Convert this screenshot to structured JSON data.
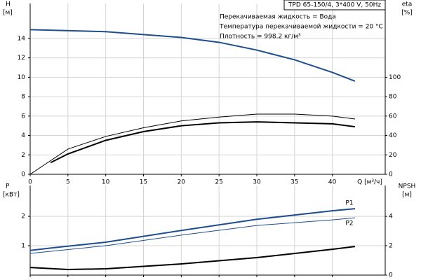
{
  "chart_data": [
    {
      "type": "line",
      "title": "TPD 65-150/4, 3*400 V, 50Hz",
      "annotations": [
        "Перекачиваемая жидкость = Вода",
        "Температура перекачиваемой жидкости = 20 °C",
        "Плотность = 998.2 кг/м³"
      ],
      "ylabel": "H",
      "yunit": "[м]",
      "y2label": "eta",
      "y2unit": "[%]",
      "xlabel": "Q [м³/ч]",
      "xlim": [
        0,
        47
      ],
      "xticks": [
        0,
        5,
        10,
        15,
        20,
        25,
        30,
        35,
        40
      ],
      "show_xtick_labels": true,
      "ylim": [
        0,
        17.6
      ],
      "yticks": [
        0,
        2,
        4,
        6,
        8,
        10,
        12,
        14
      ],
      "y2lim": [
        0,
        176
      ],
      "y2ticks": [
        0,
        20,
        40,
        60,
        80,
        100
      ],
      "grid": true,
      "series": [
        {
          "color": "#1f4e8c",
          "width": 2,
          "axis": "y",
          "x": [
            0,
            10,
            20,
            25,
            30,
            35,
            40,
            43
          ],
          "values": [
            14.9,
            14.7,
            14.1,
            13.6,
            12.8,
            11.8,
            10.5,
            9.6
          ]
        },
        {
          "color": "#000000",
          "width": 1,
          "axis": "y2",
          "x": [
            0,
            5,
            10,
            15,
            20,
            25,
            30,
            35,
            40,
            43
          ],
          "values": [
            0,
            26,
            39,
            48,
            55,
            59,
            62,
            62,
            60,
            57
          ]
        },
        {
          "color": "#000000",
          "width": 2,
          "axis": "y2",
          "x": [
            2.7,
            5,
            10,
            15,
            20,
            25,
            30,
            35,
            40,
            43
          ],
          "values": [
            12,
            21,
            35,
            44,
            50,
            53,
            54,
            53,
            52,
            49
          ]
        }
      ]
    },
    {
      "type": "line",
      "ylabel": "P",
      "yunit": "[кВт]",
      "y2label": "NPSH",
      "y2unit": "[м]",
      "xlim": [
        0,
        47
      ],
      "xticks": [
        0,
        5,
        10,
        15,
        20,
        25,
        30,
        35,
        40
      ],
      "show_xtick_labels": false,
      "ylim": [
        0,
        3.05
      ],
      "yticks": [
        1,
        2
      ],
      "y2lim": [
        0,
        6.1
      ],
      "y2ticks": [
        0,
        2,
        4
      ],
      "grid": true,
      "series": [
        {
          "name": "P1",
          "color": "#1f4e8c",
          "width": 2,
          "axis": "y",
          "x": [
            0,
            3,
            10,
            20,
            30,
            40,
            43
          ],
          "values": [
            0.84,
            0.93,
            1.12,
            1.52,
            1.9,
            2.19,
            2.26
          ]
        },
        {
          "name": "P2",
          "color": "#1f4e8c",
          "width": 1,
          "axis": "y",
          "x": [
            0,
            10,
            20,
            30,
            40,
            43
          ],
          "values": [
            0.74,
            1.0,
            1.36,
            1.69,
            1.88,
            1.95
          ]
        },
        {
          "color": "#000000",
          "width": 2,
          "axis": "y2",
          "x": [
            0,
            5,
            10,
            20,
            30,
            40,
            43
          ],
          "values": [
            0.52,
            0.38,
            0.43,
            0.76,
            1.19,
            1.76,
            1.95
          ]
        }
      ]
    }
  ]
}
